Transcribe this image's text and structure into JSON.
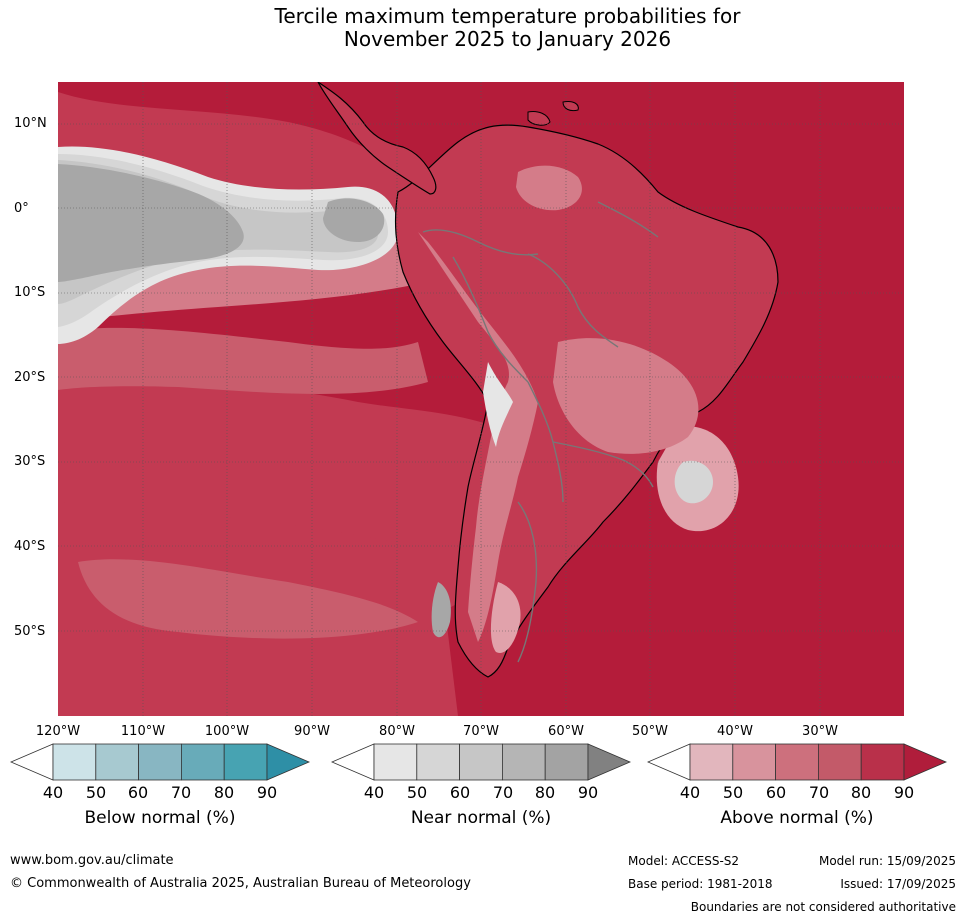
{
  "title": {
    "line1": "Tercile maximum temperature probabilities for",
    "line2": "November 2025 to January 2026"
  },
  "map": {
    "lat_labels": [
      "10°N",
      "0°",
      "10°S",
      "20°S",
      "30°S",
      "40°S",
      "50°S"
    ],
    "lon_labels": [
      "120°W",
      "110°W",
      "100°W",
      "90°W",
      "80°W",
      "70°W",
      "60°W",
      "50°W",
      "40°W",
      "30°W"
    ],
    "colors": {
      "above_90": "#b41c3a",
      "above_80": "#c23a52",
      "above_70": "#c95d6d",
      "above_60": "#d47c89",
      "above_50": "#e1a2ab",
      "near_40": "#e6e6e6",
      "near_50": "#d6d6d6",
      "near_60": "#c6c6c6",
      "near_70": "#a7a7a7"
    }
  },
  "legend": {
    "below": {
      "title": "Below normal (%)",
      "ticks": [
        "40",
        "50",
        "60",
        "70",
        "80",
        "90"
      ],
      "colors": [
        "#ffffff",
        "#cde3e8",
        "#a7c9d0",
        "#88b6c2",
        "#68abb9",
        "#47a3b2",
        "#2e8fa6"
      ]
    },
    "near": {
      "title": "Near normal (%)",
      "ticks": [
        "40",
        "50",
        "60",
        "70",
        "80",
        "90"
      ],
      "colors": [
        "#ffffff",
        "#e6e6e6",
        "#d6d6d6",
        "#c6c6c6",
        "#b5b5b5",
        "#a3a3a3",
        "#818181"
      ]
    },
    "above": {
      "title": "Above normal (%)",
      "ticks": [
        "40",
        "50",
        "60",
        "70",
        "80",
        "90"
      ],
      "colors": [
        "#ffffff",
        "#e2b6bd",
        "#d8939d",
        "#cd707d",
        "#c35a69",
        "#b9304a",
        "#b01d3b"
      ]
    }
  },
  "footer": {
    "website": "www.bom.gov.au/climate",
    "copyright": "© Commonwealth of Australia 2025, Australian Bureau of Meteorology",
    "model": "Model: ACCESS-S2",
    "model_run": "Model run: 15/09/2025",
    "base_period": "Base period: 1981-2018",
    "issued": "Issued: 17/09/2025",
    "disclaimer": "Boundaries are not considered authoritative"
  }
}
